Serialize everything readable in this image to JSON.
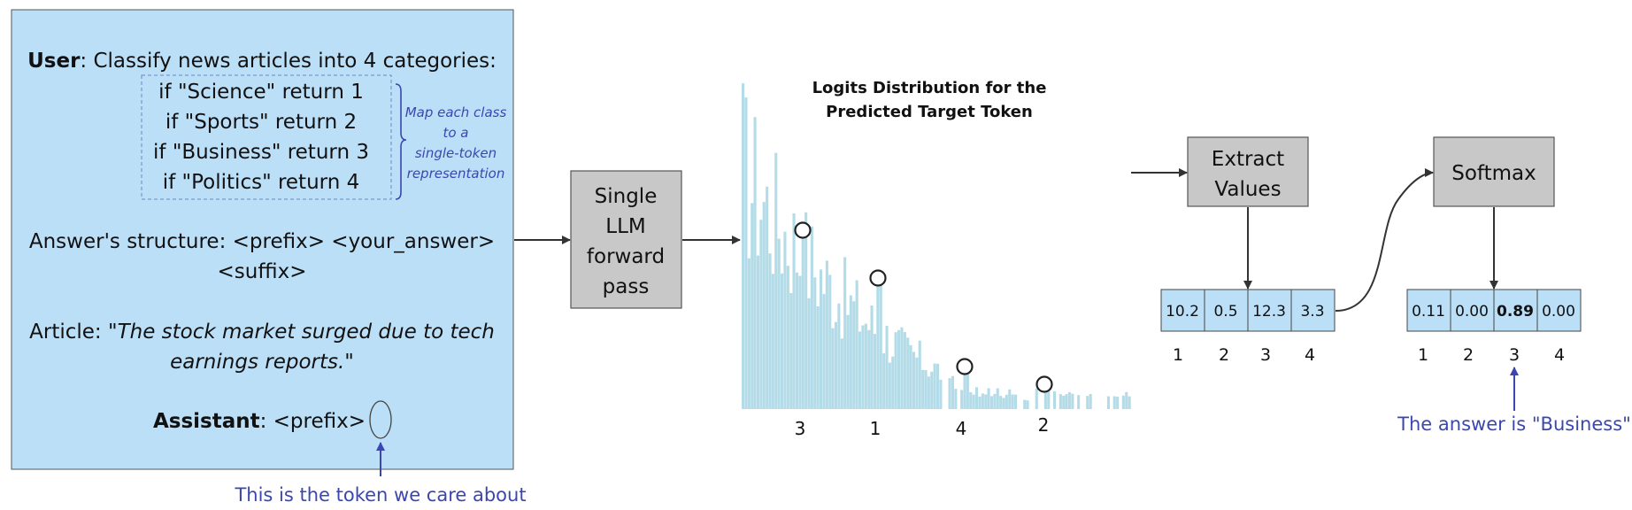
{
  "prompt_panel": {
    "user_bold": "User",
    "user_text": ": Classify news articles into 4 categories:",
    "rules": [
      "if \"Science\" return 1",
      "if \"Sports\" return 2",
      "if \"Business\" return 3",
      "if \"Politics\" return 4"
    ],
    "brace_note": [
      "Map each class",
      "to a",
      "single-token",
      "representation"
    ],
    "structure_line1": "Answer's structure: <prefix> <your_answer>",
    "structure_line2": "<suffix>",
    "article_label": "Article: ",
    "article_line1": "\"The stock market surged due to tech",
    "article_line2": "earnings reports.\"",
    "assistant_bold": "Assistant",
    "assistant_text": ": <prefix>"
  },
  "token_note": "This is the token we care about",
  "llm_box": [
    "Single",
    "LLM",
    "forward",
    "pass"
  ],
  "chart": {
    "title_line1": "Logits Distribution for the",
    "title_line2": "Predicted Target Token",
    "marker_labels": [
      "3",
      "1",
      "4",
      "2"
    ]
  },
  "extract_box": [
    "Extract",
    "Values"
  ],
  "logits": {
    "values": [
      "10.2",
      "0.5",
      "12.3",
      "3.3"
    ],
    "indices": [
      "1",
      "2",
      "3",
      "4"
    ]
  },
  "softmax_box": "Softmax",
  "probs": {
    "values": [
      "0.11",
      "0.00",
      "0.89",
      "0.00"
    ],
    "indices": [
      "1",
      "2",
      "3",
      "4"
    ]
  },
  "answer_note": "The answer is \"Business\"",
  "colors": {
    "panel_fill": "#bcdff8",
    "bar_fill": "#b3dce8",
    "box_fill": "#c8c8c8",
    "accent_blue": "#3b47b0",
    "cell_fill": "#bcdff8"
  }
}
